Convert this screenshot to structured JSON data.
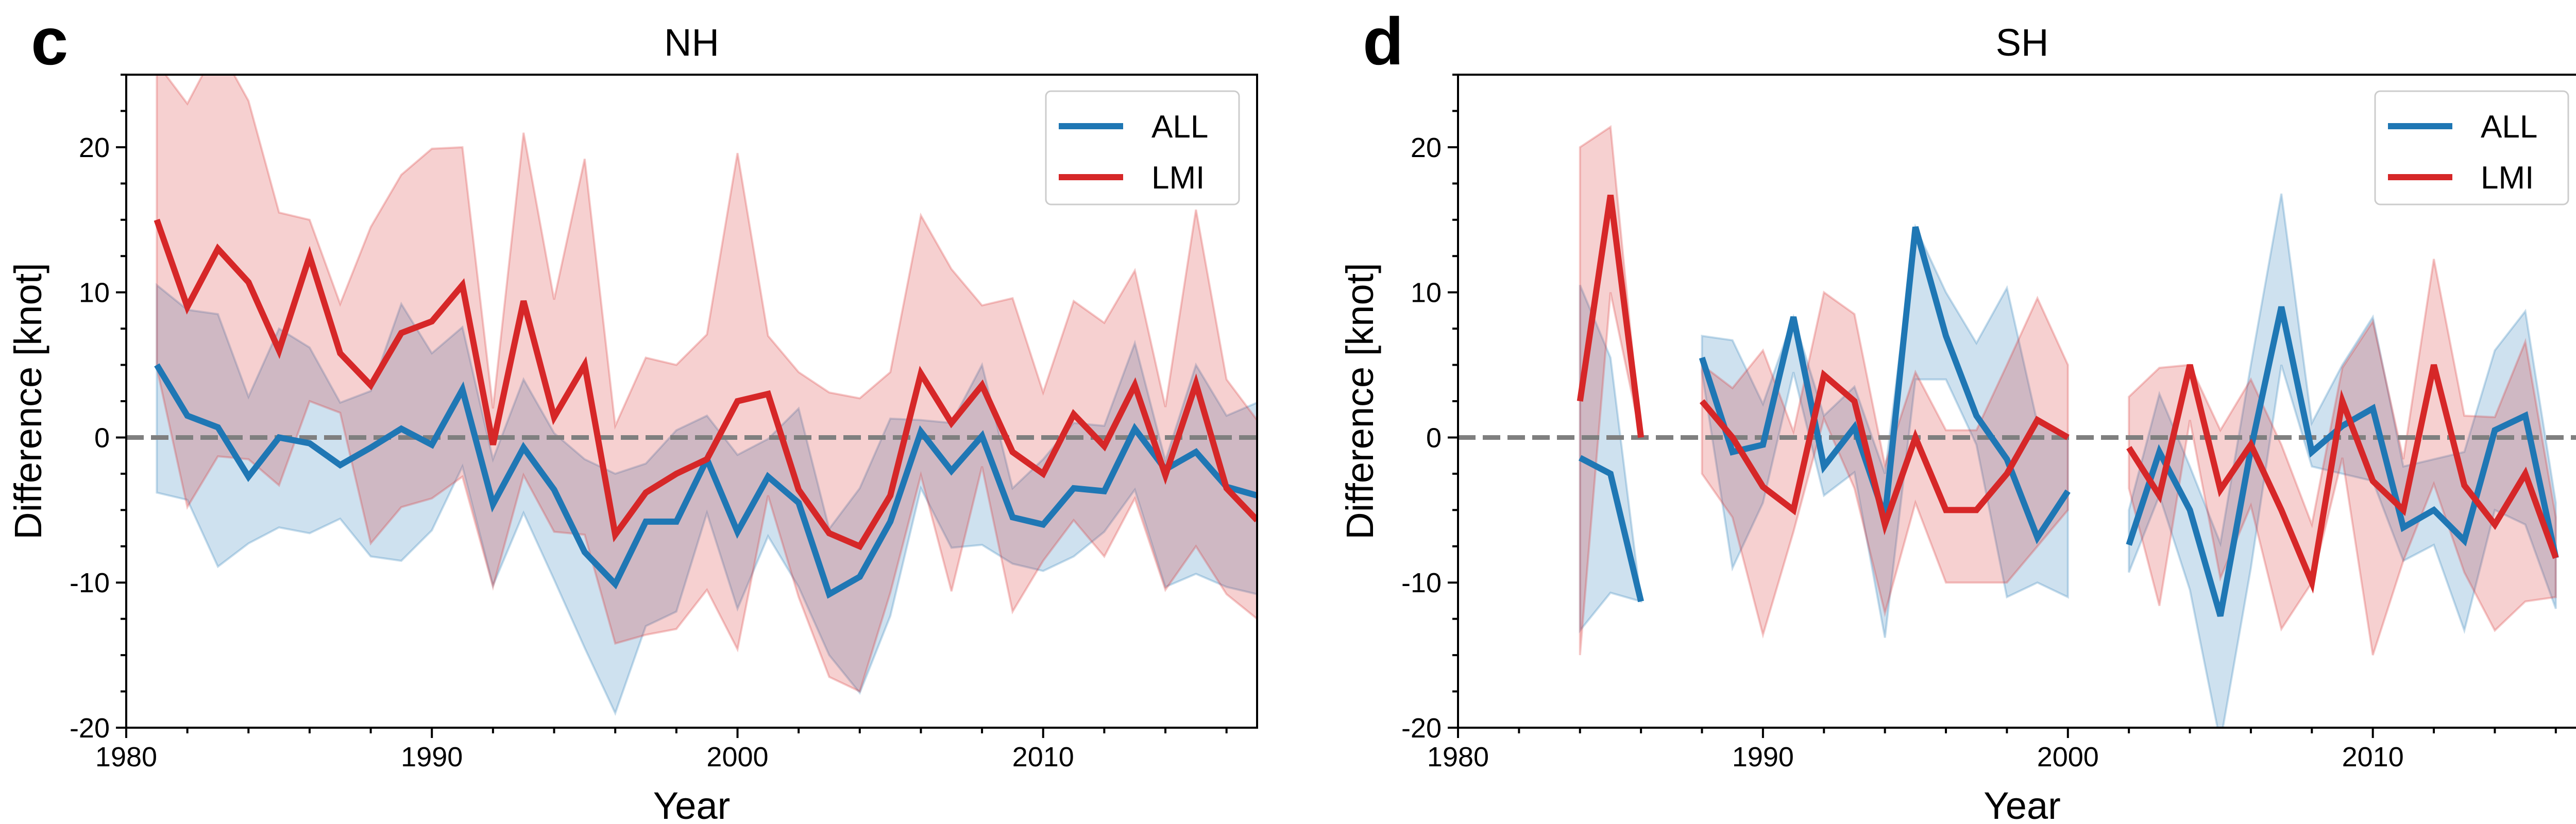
{
  "chart_data": [
    {
      "type": "line",
      "panel_label": "c",
      "title": "NH",
      "xlabel": "Year",
      "ylabel": "Difference [knot]",
      "xlim": [
        1980,
        2017
      ],
      "ylim": [
        -20,
        25
      ],
      "xticks": [
        1980,
        1990,
        2000,
        2010
      ],
      "yticks": [
        -20,
        -10,
        0,
        10,
        20
      ],
      "reference_line": {
        "y": 0,
        "style": "dashed",
        "color": "#7f7f7f"
      },
      "legend": {
        "position": "top-right"
      },
      "series": [
        {
          "name": "ALL",
          "color": "#1f77b4",
          "x": [
            1981,
            1982,
            1983,
            1984,
            1985,
            1986,
            1987,
            1988,
            1989,
            1990,
            1991,
            1992,
            1993,
            1994,
            1995,
            1996,
            1997,
            1998,
            1999,
            2000,
            2001,
            2002,
            2003,
            2004,
            2005,
            2006,
            2007,
            2008,
            2009,
            2010,
            2011,
            2012,
            2013,
            2014,
            2015,
            2016,
            2017
          ],
          "values": [
            5,
            1.5,
            0.7,
            -2.7,
            0,
            -0.4,
            -1.9,
            -0.7,
            0.6,
            -0.5,
            3.3,
            -4.6,
            -0.7,
            -3.6,
            -7.9,
            -10.1,
            -5.8,
            -5.8,
            -1.5,
            -6.5,
            -2.7,
            -4.5,
            -10.8,
            -9.6,
            -5.8,
            0.4,
            -2.3,
            0.1,
            -5.5,
            -6,
            -3.5,
            -3.7,
            0.6,
            -2.2,
            -1,
            -3.4,
            -4
          ]
        },
        {
          "name": "LMI",
          "color": "#d62728",
          "x": [
            1981,
            1982,
            1983,
            1984,
            1985,
            1986,
            1987,
            1988,
            1989,
            1990,
            1991,
            1992,
            1993,
            1994,
            1995,
            1996,
            1997,
            1998,
            1999,
            2000,
            2001,
            2002,
            2003,
            2004,
            2005,
            2006,
            2007,
            2008,
            2009,
            2010,
            2011,
            2012,
            2013,
            2014,
            2015,
            2016,
            2017
          ],
          "values": [
            15,
            9,
            13,
            10.7,
            6,
            12.5,
            5.8,
            3.6,
            7.2,
            8,
            10.5,
            -0.5,
            9.4,
            1.4,
            5,
            -6.7,
            -3.8,
            -2.5,
            -1.5,
            2.5,
            3,
            -3.6,
            -6.6,
            -7.5,
            -4,
            4.4,
            1,
            3.6,
            -1,
            -2.5,
            1.6,
            -0.6,
            3.6,
            -2.6,
            3.7,
            -3.5,
            -5.7
          ]
        }
      ],
      "bands": [
        {
          "series": "ALL",
          "color": "#1f77b4",
          "x": [
            1981,
            1982,
            1983,
            1984,
            1985,
            1986,
            1987,
            1988,
            1989,
            1990,
            1991,
            1992,
            1993,
            1994,
            1995,
            1996,
            1997,
            1998,
            1999,
            2000,
            2001,
            2002,
            2003,
            2004,
            2005,
            2006,
            2007,
            2008,
            2009,
            2010,
            2011,
            2012,
            2013,
            2014,
            2015,
            2016,
            2017
          ],
          "upper": [
            10.5,
            8.8,
            8.5,
            2.8,
            7.5,
            6.2,
            2.4,
            3.2,
            9.2,
            5.8,
            7.6,
            -1.5,
            4,
            0.3,
            -1.5,
            -2.5,
            -1.8,
            0.5,
            1.5,
            -1.2,
            -0.1,
            2,
            -6.3,
            -3.5,
            1.3,
            1.2,
            1,
            5,
            -3.5,
            -1.5,
            1,
            0.8,
            6.5,
            -1.6,
            5,
            1.5,
            2.4
          ],
          "lower": [
            -3.8,
            -4.3,
            -8.9,
            -7.3,
            -6.2,
            -6.6,
            -5.6,
            -8.2,
            -8.5,
            -6.4,
            -2,
            -10.2,
            -5.2,
            -9.8,
            -14.5,
            -19,
            -13,
            -12,
            -5.2,
            -11.8,
            -6.8,
            -10.3,
            -15,
            -17.6,
            -12.3,
            -3.5,
            -7.6,
            -7.4,
            -8.7,
            -9.2,
            -8.2,
            -6.5,
            -3.6,
            -10.3,
            -9.4,
            -10.3,
            -10.8
          ]
        },
        {
          "series": "LMI",
          "color": "#d62728",
          "x": [
            1981,
            1982,
            1983,
            1984,
            1985,
            1986,
            1987,
            1988,
            1989,
            1990,
            1991,
            1992,
            1993,
            1994,
            1995,
            1996,
            1997,
            1998,
            1999,
            2000,
            2001,
            2002,
            2003,
            2004,
            2005,
            2006,
            2007,
            2008,
            2009,
            2010,
            2011,
            2012,
            2013,
            2014,
            2015,
            2016,
            2017
          ],
          "upper": [
            25.8,
            23,
            27,
            23.2,
            15.5,
            15,
            9.2,
            14.5,
            18.1,
            19.9,
            20,
            2,
            21,
            9.5,
            19.2,
            0.8,
            5.5,
            5,
            7.1,
            19.6,
            7,
            4.5,
            3.1,
            2.7,
            4.5,
            15.3,
            11.6,
            9.1,
            9.6,
            3.1,
            9.4,
            7.9,
            11.5,
            2.1,
            15.7,
            4,
            1.2
          ],
          "lower": [
            4.8,
            -4.8,
            -1.3,
            -1.5,
            -3.3,
            2.5,
            1.7,
            -7.3,
            -4.8,
            -4.2,
            -2.7,
            -10.3,
            -2.6,
            -6.5,
            -6.7,
            -14.2,
            -13.6,
            -13.2,
            -10.5,
            -14.6,
            -4,
            -11,
            -16.5,
            -17.5,
            -10.7,
            -2.6,
            -10.6,
            -2,
            -12,
            -8.5,
            -5.7,
            -8.2,
            -4.2,
            -10.5,
            -7.5,
            -10.8,
            -12.5
          ]
        }
      ]
    },
    {
      "type": "line",
      "panel_label": "d",
      "title": "SH",
      "xlabel": "Year",
      "ylabel": "Difference [knot]",
      "xlim": [
        1980,
        2017
      ],
      "ylim": [
        -20,
        25
      ],
      "xticks": [
        1980,
        1990,
        2000,
        2010
      ],
      "yticks": [
        -20,
        -10,
        0,
        10,
        20
      ],
      "reference_line": {
        "y": 0,
        "style": "dashed",
        "color": "#7f7f7f"
      },
      "legend": {
        "position": "top-right"
      },
      "series": [
        {
          "name": "ALL",
          "color": "#1f77b4",
          "x": [
            1984,
            1985,
            1986,
            null,
            1988,
            1989,
            1990,
            1991,
            1992,
            1993,
            1994,
            1995,
            1996,
            1997,
            1998,
            1999,
            2000,
            null,
            2002,
            2003,
            2004,
            2005,
            2006,
            2007,
            2008,
            2009,
            2010,
            2011,
            2012,
            2013,
            2014,
            2015,
            2016
          ],
          "values": [
            -1.4,
            -2.5,
            -11.3,
            null,
            5.5,
            -1,
            -0.5,
            8.3,
            -2,
            0.7,
            -5.5,
            14.5,
            7,
            1.5,
            -1.5,
            -6.9,
            -3.7,
            null,
            -7.4,
            -1,
            -5,
            -12.3,
            -0.8,
            9,
            -1,
            0.8,
            2,
            -6.2,
            -5,
            -7.1,
            0.5,
            1.5,
            -8.3
          ]
        },
        {
          "name": "LMI",
          "color": "#d62728",
          "x": [
            1984,
            1985,
            1986,
            null,
            1988,
            1989,
            1990,
            1991,
            1992,
            1993,
            1994,
            1995,
            1996,
            1997,
            1998,
            1999,
            2000,
            null,
            2002,
            2003,
            2004,
            2005,
            2006,
            2007,
            2008,
            2009,
            2010,
            2011,
            2012,
            2013,
            2014,
            2015,
            2016
          ],
          "values": [
            2.5,
            16.7,
            0,
            null,
            2.5,
            0,
            -3.4,
            -5,
            4.3,
            2.5,
            -6,
            0,
            -5,
            -5,
            -2.5,
            1.2,
            0,
            null,
            -0.7,
            -4,
            5,
            -3.6,
            -0.5,
            -5,
            -10,
            2.5,
            -3,
            -5,
            5,
            -3.3,
            -6,
            -2.5,
            -8.3
          ]
        }
      ],
      "bands": [
        {
          "series": "ALL",
          "color": "#1f77b4",
          "x": [
            1984,
            1985,
            1986,
            null,
            1988,
            1989,
            1990,
            1991,
            1992,
            1993,
            1994,
            1995,
            1996,
            1997,
            1998,
            1999,
            2000,
            null,
            2002,
            2003,
            2004,
            2005,
            2006,
            2007,
            2008,
            2009,
            2010,
            2011,
            2012,
            2013,
            2014,
            2015,
            2016
          ],
          "upper": [
            10.5,
            5.5,
            -11.3,
            null,
            7,
            6.7,
            2.3,
            8.3,
            1.5,
            3.5,
            -2.5,
            14.5,
            10,
            6.5,
            10.3,
            1,
            0,
            null,
            -5,
            3,
            -2,
            -7.3,
            5,
            16.8,
            1,
            5,
            8.3,
            -2,
            -1.5,
            -1,
            6,
            8.7,
            -4.5
          ],
          "lower": [
            -13.3,
            -10.7,
            -11.3,
            null,
            4.5,
            -9,
            -4.5,
            4.5,
            -4,
            -2.4,
            -13.8,
            4,
            4,
            -0.5,
            -11,
            -10,
            -11,
            null,
            -9.3,
            -4,
            -10.5,
            -21,
            -9,
            5,
            -2,
            -2.5,
            -3,
            -8.5,
            -7.4,
            -13.3,
            -5,
            -6,
            -11.8
          ]
        },
        {
          "series": "LMI",
          "color": "#d62728",
          "x": [
            1984,
            1985,
            1986,
            null,
            1988,
            1989,
            1990,
            1991,
            1992,
            1993,
            1994,
            1995,
            1996,
            1997,
            1998,
            1999,
            2000,
            null,
            2002,
            2003,
            2004,
            2005,
            2006,
            2007,
            2008,
            2009,
            2010,
            2011,
            2012,
            2013,
            2014,
            2015,
            2016
          ],
          "upper": [
            20,
            21.4,
            0,
            null,
            5,
            3.4,
            6,
            0.4,
            10,
            8.5,
            -1.9,
            4.5,
            0.5,
            0.5,
            5,
            9.6,
            5,
            null,
            2.8,
            4.8,
            5,
            0.5,
            4,
            -0.5,
            -6,
            4.8,
            8,
            -1.5,
            12.3,
            1.5,
            1.4,
            6.6,
            -5.5
          ],
          "lower": [
            -15,
            10,
            0,
            null,
            -2.5,
            -5.5,
            -13.6,
            -6.5,
            1.3,
            -3.5,
            -12.1,
            -4.5,
            -10,
            -10,
            -10,
            -7.5,
            -5,
            null,
            -3.5,
            -11.6,
            1.2,
            -9.7,
            -4.7,
            -13.2,
            -10,
            -1.4,
            -15,
            -8.5,
            -3.2,
            -9.3,
            -13.3,
            -11.3,
            -11
          ]
        }
      ]
    }
  ]
}
